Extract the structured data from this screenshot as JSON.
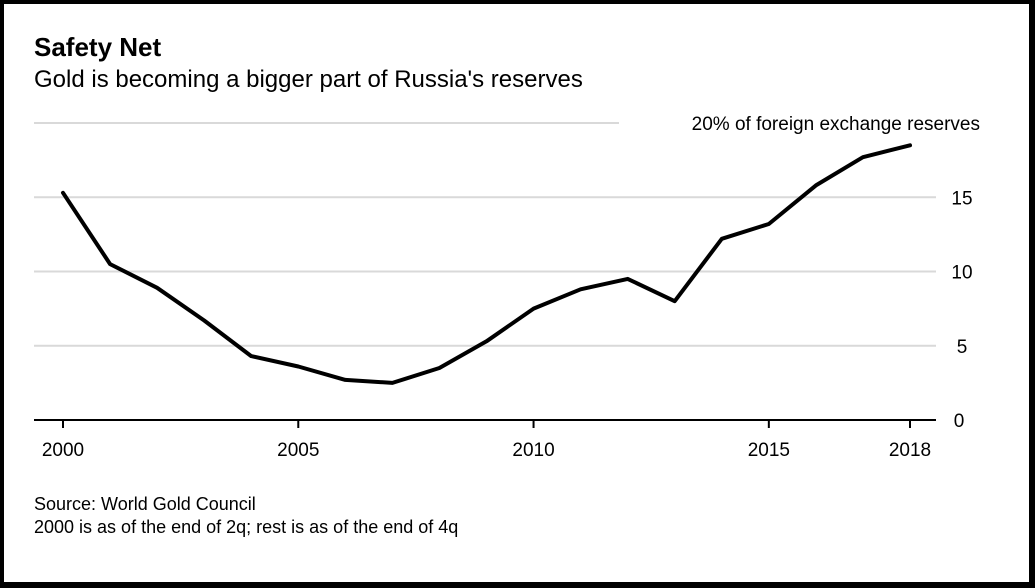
{
  "title": "Safety Net",
  "subtitle": "Gold is becoming a bigger part of Russia's reserves",
  "source": "Source: World Gold Council",
  "note": "2000 is as of the end of 2q; rest is as of the end of 4q",
  "chart_data": {
    "type": "line",
    "x": [
      2000,
      2001,
      2002,
      2003,
      2004,
      2005,
      2006,
      2007,
      2008,
      2009,
      2010,
      2011,
      2012,
      2013,
      2014,
      2015,
      2016,
      2017,
      2018
    ],
    "series": [
      {
        "values": [
          15.3,
          10.5,
          8.9,
          6.7,
          4.3,
          3.6,
          2.7,
          2.5,
          3.5,
          5.3,
          7.5,
          8.8,
          9.5,
          8.0,
          12.2,
          13.2,
          15.8,
          17.7,
          18.5
        ],
        "color": "#000000"
      }
    ],
    "xticks": [
      "2000",
      "2005",
      "2010",
      "2015",
      "2018"
    ],
    "yticks": [
      "0",
      "5",
      "10",
      "15"
    ],
    "ytop_label": "20% of foreign exchange reserves",
    "xlim": [
      2000,
      2018
    ],
    "ylim": [
      0,
      20
    ],
    "grid": true,
    "y_axis_side": "right"
  }
}
